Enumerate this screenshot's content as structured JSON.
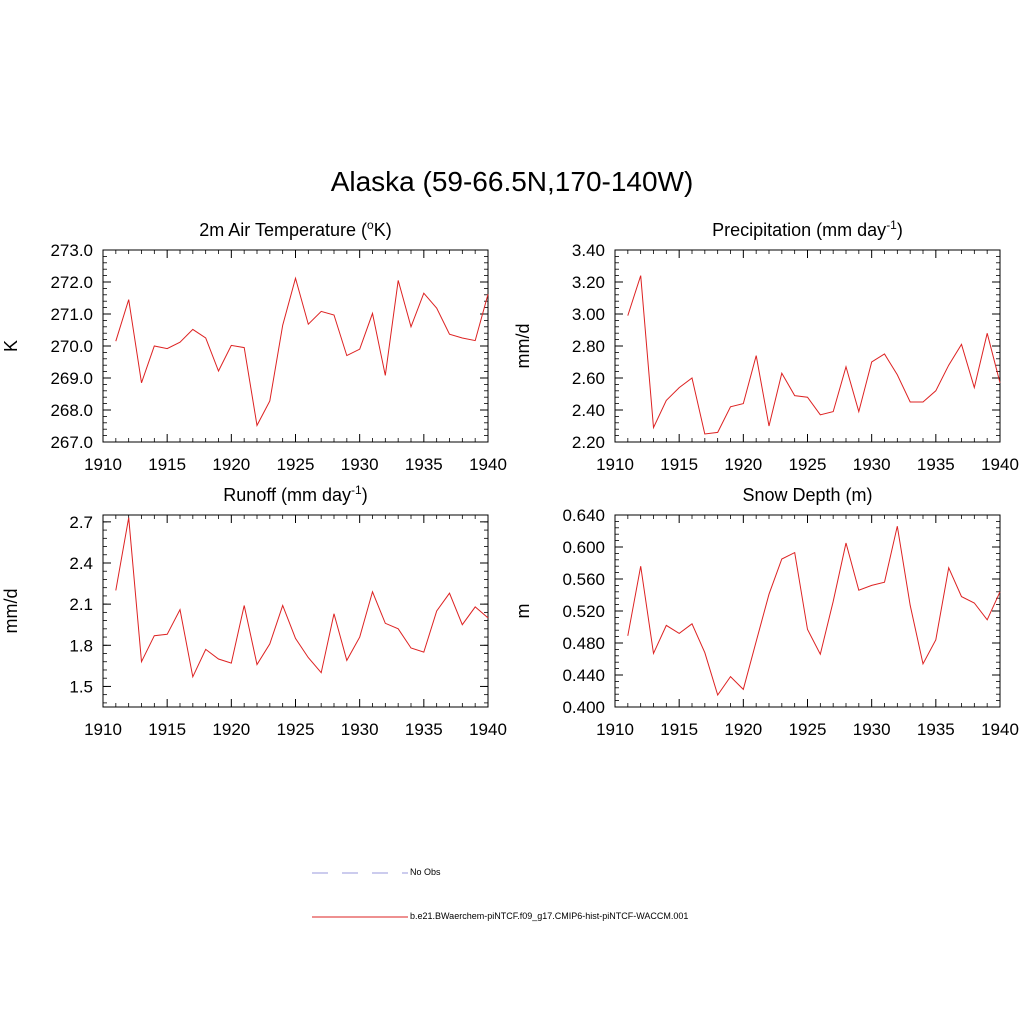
{
  "title": "Alaska (59-66.5N,170-140W)",
  "legend": {
    "items": [
      {
        "label": "No Obs",
        "color": "#9999dd",
        "style": "dashed"
      },
      {
        "label": "b.e21.BWaerchem-piNTCF.f09_g17.CMIP6-hist-piNTCF-WACCM.001",
        "color": "#dd2222",
        "style": "solid"
      }
    ]
  },
  "chart_data": [
    {
      "type": "line",
      "title": "2m Air Temperature (",
      "title_sup1": "o",
      "title_mid": "K)",
      "title_sup2": "",
      "title_end": "",
      "ylabel": "K",
      "xlim": [
        1910,
        1940
      ],
      "ylim": [
        267.0,
        273.0
      ],
      "xticks": [
        1910,
        1915,
        1920,
        1925,
        1930,
        1935,
        1940
      ],
      "yticks": [
        "267.0",
        "268.0",
        "269.0",
        "270.0",
        "271.0",
        "272.0",
        "273.0"
      ],
      "ytick_values": [
        267,
        268,
        269,
        270,
        271,
        272,
        273
      ],
      "yminor": 0.2,
      "x": [
        1911,
        1912,
        1913,
        1914,
        1915,
        1916,
        1917,
        1918,
        1919,
        1920,
        1921,
        1922,
        1923,
        1924,
        1925,
        1926,
        1927,
        1928,
        1929,
        1930,
        1931,
        1932,
        1933,
        1934,
        1935,
        1936,
        1937,
        1938,
        1939,
        1940
      ],
      "series": [
        {
          "name": "b.e21.BWaerchem-piNTCF.f09_g17.CMIP6-hist-piNTCF-WACCM.001",
          "values": [
            270.15,
            271.45,
            268.85,
            270.0,
            269.92,
            270.12,
            270.52,
            270.25,
            269.22,
            270.02,
            269.95,
            267.52,
            268.28,
            270.65,
            272.12,
            270.68,
            271.08,
            270.97,
            269.7,
            269.9,
            271.02,
            269.08,
            272.05,
            270.6,
            271.65,
            271.18,
            270.37,
            270.25,
            270.17,
            271.62
          ],
          "color": "#dd2222"
        }
      ]
    },
    {
      "type": "line",
      "title": "Precipitation (mm day",
      "title_sup1": "",
      "title_mid": "",
      "title_sup2": "-1",
      "title_end": ")",
      "ylabel": "mm/d",
      "xlim": [
        1910,
        1940
      ],
      "ylim": [
        2.2,
        3.4
      ],
      "xticks": [
        1910,
        1915,
        1920,
        1925,
        1930,
        1935,
        1940
      ],
      "yticks": [
        "2.20",
        "2.40",
        "2.60",
        "2.80",
        "3.00",
        "3.20",
        "3.40"
      ],
      "ytick_values": [
        2.2,
        2.4,
        2.6,
        2.8,
        3.0,
        3.2,
        3.4
      ],
      "yminor": 0.04,
      "x": [
        1911,
        1912,
        1913,
        1914,
        1915,
        1916,
        1917,
        1918,
        1919,
        1920,
        1921,
        1922,
        1923,
        1924,
        1925,
        1926,
        1927,
        1928,
        1929,
        1930,
        1931,
        1932,
        1933,
        1934,
        1935,
        1936,
        1937,
        1938,
        1939,
        1940
      ],
      "series": [
        {
          "name": "b.e21.BWaerchem-piNTCF.f09_g17.CMIP6-hist-piNTCF-WACCM.001",
          "values": [
            2.99,
            3.24,
            2.29,
            2.46,
            2.54,
            2.6,
            2.25,
            2.26,
            2.42,
            2.44,
            2.74,
            2.3,
            2.63,
            2.49,
            2.48,
            2.37,
            2.39,
            2.67,
            2.39,
            2.7,
            2.75,
            2.62,
            2.45,
            2.45,
            2.52,
            2.68,
            2.81,
            2.54,
            2.88,
            2.57
          ],
          "color": "#dd2222"
        }
      ]
    },
    {
      "type": "line",
      "title": "Runoff (mm day",
      "title_sup1": "",
      "title_mid": "",
      "title_sup2": "-1",
      "title_end": ")",
      "ylabel": "mm/d",
      "xlim": [
        1910,
        1940
      ],
      "ylim": [
        1.35,
        2.75
      ],
      "xticks": [
        1910,
        1915,
        1920,
        1925,
        1930,
        1935,
        1940
      ],
      "yticks": [
        "1.5",
        "1.8",
        "2.1",
        "2.4",
        "2.7"
      ],
      "ytick_values": [
        1.5,
        1.8,
        2.1,
        2.4,
        2.7
      ],
      "yminor": 0.06,
      "x": [
        1911,
        1912,
        1913,
        1914,
        1915,
        1916,
        1917,
        1918,
        1919,
        1920,
        1921,
        1922,
        1923,
        1924,
        1925,
        1926,
        1927,
        1928,
        1929,
        1930,
        1931,
        1932,
        1933,
        1934,
        1935,
        1936,
        1937,
        1938,
        1939,
        1940
      ],
      "series": [
        {
          "name": "b.e21.BWaerchem-piNTCF.f09_g17.CMIP6-hist-piNTCF-WACCM.001",
          "values": [
            2.2,
            2.73,
            1.68,
            1.87,
            1.88,
            2.06,
            1.57,
            1.77,
            1.7,
            1.67,
            2.09,
            1.66,
            1.81,
            2.09,
            1.85,
            1.71,
            1.6,
            2.03,
            1.69,
            1.86,
            2.19,
            1.96,
            1.92,
            1.78,
            1.75,
            2.05,
            2.18,
            1.95,
            2.08,
            2.0
          ],
          "color": "#dd2222"
        }
      ]
    },
    {
      "type": "line",
      "title": "Snow Depth (m)",
      "title_sup1": "",
      "title_mid": "",
      "title_sup2": "",
      "title_end": "",
      "ylabel": "m",
      "xlim": [
        1910,
        1940
      ],
      "ylim": [
        0.4,
        0.64
      ],
      "xticks": [
        1910,
        1915,
        1920,
        1925,
        1930,
        1935,
        1940
      ],
      "yticks": [
        "0.400",
        "0.440",
        "0.480",
        "0.520",
        "0.560",
        "0.600",
        "0.640"
      ],
      "ytick_values": [
        0.4,
        0.44,
        0.48,
        0.52,
        0.56,
        0.6,
        0.64
      ],
      "yminor": 0.008,
      "x": [
        1911,
        1912,
        1913,
        1914,
        1915,
        1916,
        1917,
        1918,
        1919,
        1920,
        1921,
        1922,
        1923,
        1924,
        1925,
        1926,
        1927,
        1928,
        1929,
        1930,
        1931,
        1932,
        1933,
        1934,
        1935,
        1936,
        1937,
        1938,
        1939,
        1940
      ],
      "series": [
        {
          "name": "b.e21.BWaerchem-piNTCF.f09_g17.CMIP6-hist-piNTCF-WACCM.001",
          "values": [
            0.489,
            0.576,
            0.467,
            0.502,
            0.492,
            0.504,
            0.468,
            0.415,
            0.438,
            0.422,
            0.482,
            0.541,
            0.585,
            0.593,
            0.497,
            0.466,
            0.532,
            0.605,
            0.546,
            0.552,
            0.556,
            0.626,
            0.527,
            0.454,
            0.484,
            0.574,
            0.538,
            0.53,
            0.509,
            0.544
          ],
          "color": "#dd2222"
        }
      ]
    }
  ]
}
